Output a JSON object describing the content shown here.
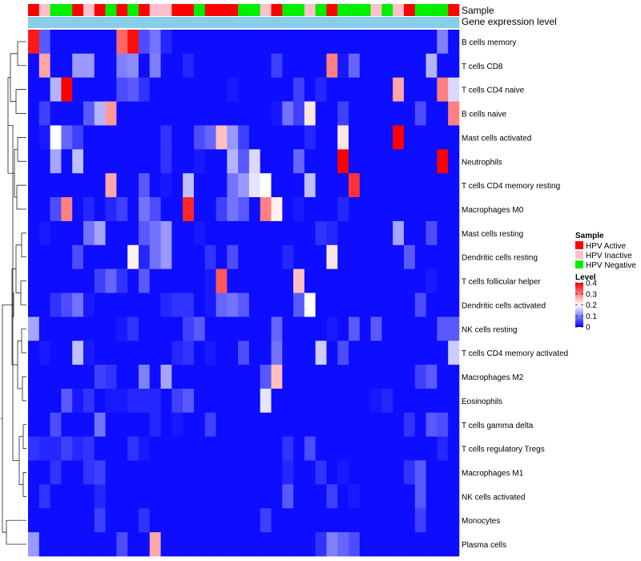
{
  "chart_data": {
    "type": "heatmap",
    "title": "",
    "annotation_tracks": [
      "Sample",
      "Gene expression level"
    ],
    "sample_legend": {
      "title": "Sample",
      "entries": [
        {
          "label": "HPV Active",
          "color": "#ff0000"
        },
        {
          "label": "HPV Inactive",
          "color": "#ffc0cb"
        },
        {
          "label": "HPV Negative",
          "color": "#00ee00"
        }
      ]
    },
    "level_legend": {
      "title": "Level",
      "ticks": [
        0.4,
        0.3,
        0.2,
        0.1,
        0
      ],
      "tick_labels": [
        "0.4",
        "0.3",
        "0.2",
        "0.1",
        "0"
      ],
      "range": [
        0,
        0.4
      ],
      "colors": {
        "low": "#0000ff",
        "mid": "#ffffff",
        "high": "#ff0000"
      }
    },
    "gene_expression_color": "#87ceeb",
    "samples": [
      "A",
      "I",
      "N",
      "N",
      "A",
      "I",
      "A",
      "N",
      "A",
      "N",
      "A",
      "I",
      "I",
      "A",
      "A",
      "N",
      "A",
      "A",
      "A",
      "N",
      "N",
      "I",
      "A",
      "N",
      "N",
      "I",
      "N",
      "A",
      "N",
      "N",
      "N",
      "I",
      "N",
      "I",
      "A",
      "N",
      "N",
      "N",
      "A"
    ],
    "rows": [
      "B cells memory",
      "T cells CD8",
      "T cells CD4 naive",
      "B cells naive",
      "Mast cells activated",
      "Neutrophils",
      "T cells CD4 memory resting",
      "Macrophages M0",
      "Mast cells resting",
      "Dendritic cells resting",
      "T cells follicular helper",
      "Dendritic cells activated",
      "NK cells resting",
      "T cells CD4 memory activated",
      "Macrophages M2",
      "Eosinophils",
      "T cells gamma delta",
      "T cells regulatory  Tregs",
      "Macrophages M1",
      "NK cells activated",
      "Monocytes",
      "Plasma cells"
    ],
    "values": [
      [
        0.38,
        0.07,
        0.01,
        0.01,
        0.01,
        0.01,
        0.01,
        0.01,
        0.32,
        0.39,
        0.06,
        0.09,
        0.03,
        0.01,
        0.01,
        0.01,
        0.01,
        0.01,
        0.01,
        0.01,
        0.01,
        0.01,
        0.01,
        0.01,
        0.01,
        0.01,
        0.01,
        0.01,
        0.01,
        0.01,
        0.01,
        0.01,
        0.01,
        0.01,
        0.01,
        0.01,
        0.01,
        0.1,
        0.01
      ],
      [
        0.01,
        0.27,
        0.01,
        0.01,
        0.12,
        0.12,
        0.01,
        0.01,
        0.1,
        0.11,
        0.01,
        0.1,
        0.01,
        0.01,
        0.03,
        0.01,
        0.01,
        0.01,
        0.01,
        0.01,
        0.01,
        0.01,
        0.05,
        0.01,
        0.01,
        0.01,
        0.01,
        0.3,
        0.02,
        0.08,
        0.01,
        0.01,
        0.01,
        0.01,
        0.01,
        0.01,
        0.14,
        0.01,
        0.01
      ],
      [
        0.01,
        0.01,
        0.14,
        0.4,
        0.01,
        0.01,
        0.01,
        0.01,
        0.06,
        0.07,
        0.04,
        0.01,
        0.01,
        0.01,
        0.01,
        0.01,
        0.01,
        0.01,
        0.02,
        0.01,
        0.01,
        0.01,
        0.01,
        0.01,
        0.05,
        0.01,
        0.03,
        0.01,
        0.01,
        0.01,
        0.01,
        0.01,
        0.01,
        0.27,
        0.01,
        0.01,
        0.01,
        0.3,
        0.17
      ],
      [
        0.01,
        0.05,
        0.01,
        0.01,
        0.01,
        0.07,
        0.14,
        0.28,
        0.01,
        0.01,
        0.01,
        0.01,
        0.01,
        0.01,
        0.01,
        0.01,
        0.01,
        0.01,
        0.01,
        0.01,
        0.01,
        0.01,
        0.02,
        0.09,
        0.05,
        0.22,
        0.01,
        0.01,
        0.05,
        0.01,
        0.01,
        0.01,
        0.01,
        0.01,
        0.01,
        0.06,
        0.01,
        0.01,
        0.3
      ],
      [
        0.01,
        0.02,
        0.2,
        0.08,
        0.05,
        0.01,
        0.01,
        0.01,
        0.01,
        0.01,
        0.01,
        0.01,
        0.04,
        0.01,
        0.01,
        0.06,
        0.08,
        0.25,
        0.12,
        0.05,
        0.01,
        0.01,
        0.01,
        0.01,
        0.01,
        0.03,
        0.01,
        0.01,
        0.22,
        0.01,
        0.01,
        0.01,
        0.01,
        0.4,
        0.01,
        0.01,
        0.01,
        0.01,
        0.01
      ],
      [
        0.01,
        0.01,
        0.13,
        0.01,
        0.15,
        0.01,
        0.01,
        0.01,
        0.01,
        0.01,
        0.01,
        0.01,
        0.04,
        0.01,
        0.01,
        0.02,
        0.01,
        0.01,
        0.14,
        0.07,
        0.17,
        0.01,
        0.01,
        0.01,
        0.08,
        0.01,
        0.01,
        0.01,
        0.4,
        0.01,
        0.01,
        0.01,
        0.01,
        0.01,
        0.01,
        0.01,
        0.01,
        0.4,
        0.01
      ],
      [
        0.01,
        0.01,
        0.01,
        0.01,
        0.01,
        0.01,
        0.01,
        0.27,
        0.01,
        0.01,
        0.07,
        0.01,
        0.02,
        0.01,
        0.15,
        0.01,
        0.01,
        0.01,
        0.09,
        0.12,
        0.18,
        0.2,
        0.01,
        0.01,
        0.01,
        0.15,
        0.01,
        0.01,
        0.01,
        0.36,
        0.01,
        0.01,
        0.01,
        0.01,
        0.01,
        0.01,
        0.01,
        0.01,
        0.01
      ],
      [
        0.01,
        0.01,
        0.06,
        0.3,
        0.01,
        0.03,
        0.01,
        0.03,
        0.05,
        0.01,
        0.09,
        0.06,
        0.01,
        0.01,
        0.37,
        0.01,
        0.01,
        0.05,
        0.09,
        0.07,
        0.01,
        0.3,
        0.21,
        0.01,
        0.02,
        0.01,
        0.01,
        0.01,
        0.03,
        0.01,
        0.01,
        0.01,
        0.01,
        0.01,
        0.01,
        0.01,
        0.01,
        0.01,
        0.01
      ],
      [
        0.01,
        0.02,
        0.01,
        0.01,
        0.01,
        0.09,
        0.13,
        0.01,
        0.01,
        0.01,
        0.07,
        0.09,
        0.12,
        0.01,
        0.01,
        0.02,
        0.01,
        0.01,
        0.01,
        0.01,
        0.01,
        0.01,
        0.01,
        0.01,
        0.01,
        0.01,
        0.04,
        0.03,
        0.01,
        0.01,
        0.01,
        0.01,
        0.01,
        0.13,
        0.01,
        0.01,
        0.06,
        0.01,
        0.01
      ],
      [
        0.01,
        0.01,
        0.01,
        0.01,
        0.06,
        0.01,
        0.01,
        0.01,
        0.01,
        0.21,
        0.03,
        0.09,
        0.12,
        0.01,
        0.01,
        0.01,
        0.04,
        0.01,
        0.06,
        0.01,
        0.01,
        0.01,
        0.01,
        0.03,
        0.01,
        0.01,
        0.01,
        0.22,
        0.01,
        0.01,
        0.01,
        0.01,
        0.01,
        0.01,
        0.07,
        0.01,
        0.01,
        0.01,
        0.01
      ],
      [
        0.01,
        0.01,
        0.01,
        0.01,
        0.01,
        0.01,
        0.05,
        0.08,
        0.04,
        0.01,
        0.07,
        0.01,
        0.01,
        0.01,
        0.01,
        0.01,
        0.02,
        0.33,
        0.01,
        0.01,
        0.01,
        0.01,
        0.01,
        0.01,
        0.25,
        0.01,
        0.01,
        0.01,
        0.01,
        0.01,
        0.01,
        0.01,
        0.01,
        0.01,
        0.01,
        0.01,
        0.02,
        0.01,
        0.01
      ],
      [
        0.01,
        0.01,
        0.04,
        0.06,
        0.09,
        0.02,
        0.01,
        0.01,
        0.01,
        0.01,
        0.01,
        0.01,
        0.03,
        0.04,
        0.04,
        0.01,
        0.02,
        0.08,
        0.09,
        0.07,
        0.01,
        0.01,
        0.01,
        0.01,
        0.07,
        0.2,
        0.01,
        0.01,
        0.01,
        0.01,
        0.01,
        0.01,
        0.01,
        0.01,
        0.01,
        0.06,
        0.01,
        0.01,
        0.01
      ],
      [
        0.13,
        0.01,
        0.01,
        0.01,
        0.01,
        0.01,
        0.01,
        0.01,
        0.02,
        0.04,
        0.01,
        0.01,
        0.01,
        0.01,
        0.05,
        0.07,
        0.01,
        0.01,
        0.01,
        0.01,
        0.01,
        0.01,
        0.08,
        0.01,
        0.01,
        0.01,
        0.01,
        0.02,
        0.01,
        0.07,
        0.01,
        0.07,
        0.01,
        0.01,
        0.01,
        0.01,
        0.01,
        0.07,
        0.07
      ],
      [
        0.01,
        0.02,
        0.01,
        0.01,
        0.15,
        0.02,
        0.01,
        0.01,
        0.01,
        0.01,
        0.01,
        0.01,
        0.01,
        0.03,
        0.04,
        0.01,
        0.02,
        0.01,
        0.01,
        0.06,
        0.01,
        0.01,
        0.09,
        0.01,
        0.01,
        0.01,
        0.16,
        0.01,
        0.06,
        0.01,
        0.01,
        0.01,
        0.01,
        0.01,
        0.01,
        0.01,
        0.01,
        0.01,
        0.16
      ],
      [
        0.01,
        0.01,
        0.01,
        0.01,
        0.01,
        0.01,
        0.05,
        0.04,
        0.01,
        0.01,
        0.1,
        0.01,
        0.13,
        0.01,
        0.01,
        0.01,
        0.01,
        0.01,
        0.01,
        0.01,
        0.01,
        0.07,
        0.25,
        0.01,
        0.01,
        0.01,
        0.01,
        0.01,
        0.01,
        0.01,
        0.01,
        0.01,
        0.01,
        0.01,
        0.01,
        0.05,
        0.07,
        0.01,
        0.01
      ],
      [
        0.01,
        0.01,
        0.01,
        0.07,
        0.02,
        0.04,
        0.01,
        0.02,
        0.02,
        0.03,
        0.03,
        0.03,
        0.01,
        0.05,
        0.07,
        0.01,
        0.01,
        0.01,
        0.01,
        0.01,
        0.01,
        0.18,
        0.01,
        0.01,
        0.01,
        0.01,
        0.01,
        0.01,
        0.01,
        0.01,
        0.01,
        0.02,
        0.03,
        0.01,
        0.01,
        0.01,
        0.01,
        0.01,
        0.01
      ],
      [
        0.01,
        0.01,
        0.06,
        0.01,
        0.01,
        0.01,
        0.09,
        0.01,
        0.01,
        0.01,
        0.01,
        0.03,
        0.01,
        0.02,
        0.01,
        0.01,
        0.05,
        0.01,
        0.01,
        0.01,
        0.01,
        0.01,
        0.01,
        0.01,
        0.01,
        0.01,
        0.01,
        0.01,
        0.01,
        0.01,
        0.01,
        0.01,
        0.01,
        0.01,
        0.04,
        0.01,
        0.07,
        0.06,
        0.01
      ],
      [
        0.04,
        0.03,
        0.03,
        0.05,
        0.03,
        0.04,
        0.01,
        0.01,
        0.01,
        0.04,
        0.02,
        0.01,
        0.01,
        0.01,
        0.01,
        0.01,
        0.01,
        0.01,
        0.01,
        0.01,
        0.01,
        0.01,
        0.01,
        0.04,
        0.01,
        0.06,
        0.01,
        0.01,
        0.01,
        0.01,
        0.01,
        0.01,
        0.01,
        0.01,
        0.01,
        0.01,
        0.01,
        0.03,
        0.01
      ],
      [
        0.01,
        0.01,
        0.04,
        0.01,
        0.01,
        0.04,
        0.05,
        0.01,
        0.01,
        0.01,
        0.01,
        0.01,
        0.01,
        0.01,
        0.01,
        0.01,
        0.01,
        0.01,
        0.01,
        0.01,
        0.01,
        0.01,
        0.01,
        0.03,
        0.01,
        0.01,
        0.04,
        0.01,
        0.02,
        0.01,
        0.01,
        0.01,
        0.01,
        0.01,
        0.04,
        0.07,
        0.01,
        0.01,
        0.01
      ],
      [
        0.01,
        0.04,
        0.01,
        0.01,
        0.01,
        0.01,
        0.03,
        0.01,
        0.01,
        0.01,
        0.01,
        0.01,
        0.01,
        0.01,
        0.01,
        0.01,
        0.01,
        0.01,
        0.01,
        0.01,
        0.01,
        0.01,
        0.01,
        0.07,
        0.01,
        0.01,
        0.01,
        0.05,
        0.01,
        0.02,
        0.01,
        0.01,
        0.01,
        0.01,
        0.01,
        0.07,
        0.01,
        0.01,
        0.01
      ],
      [
        0.01,
        0.01,
        0.01,
        0.01,
        0.01,
        0.01,
        0.05,
        0.01,
        0.01,
        0.01,
        0.04,
        0.01,
        0.01,
        0.01,
        0.01,
        0.01,
        0.01,
        0.01,
        0.01,
        0.01,
        0.01,
        0.05,
        0.01,
        0.01,
        0.01,
        0.01,
        0.01,
        0.01,
        0.01,
        0.01,
        0.01,
        0.01,
        0.01,
        0.01,
        0.01,
        0.05,
        0.01,
        0.01,
        0.01
      ],
      [
        0.12,
        0.01,
        0.01,
        0.01,
        0.01,
        0.01,
        0.01,
        0.01,
        0.06,
        0.01,
        0.01,
        0.27,
        0.01,
        0.01,
        0.01,
        0.01,
        0.01,
        0.01,
        0.01,
        0.01,
        0.01,
        0.01,
        0.01,
        0.01,
        0.01,
        0.01,
        0.04,
        0.1,
        0.08,
        0.06,
        0.01,
        0.01,
        0.01,
        0.01,
        0.01,
        0.01,
        0.01,
        0.01,
        0.01
      ]
    ]
  }
}
